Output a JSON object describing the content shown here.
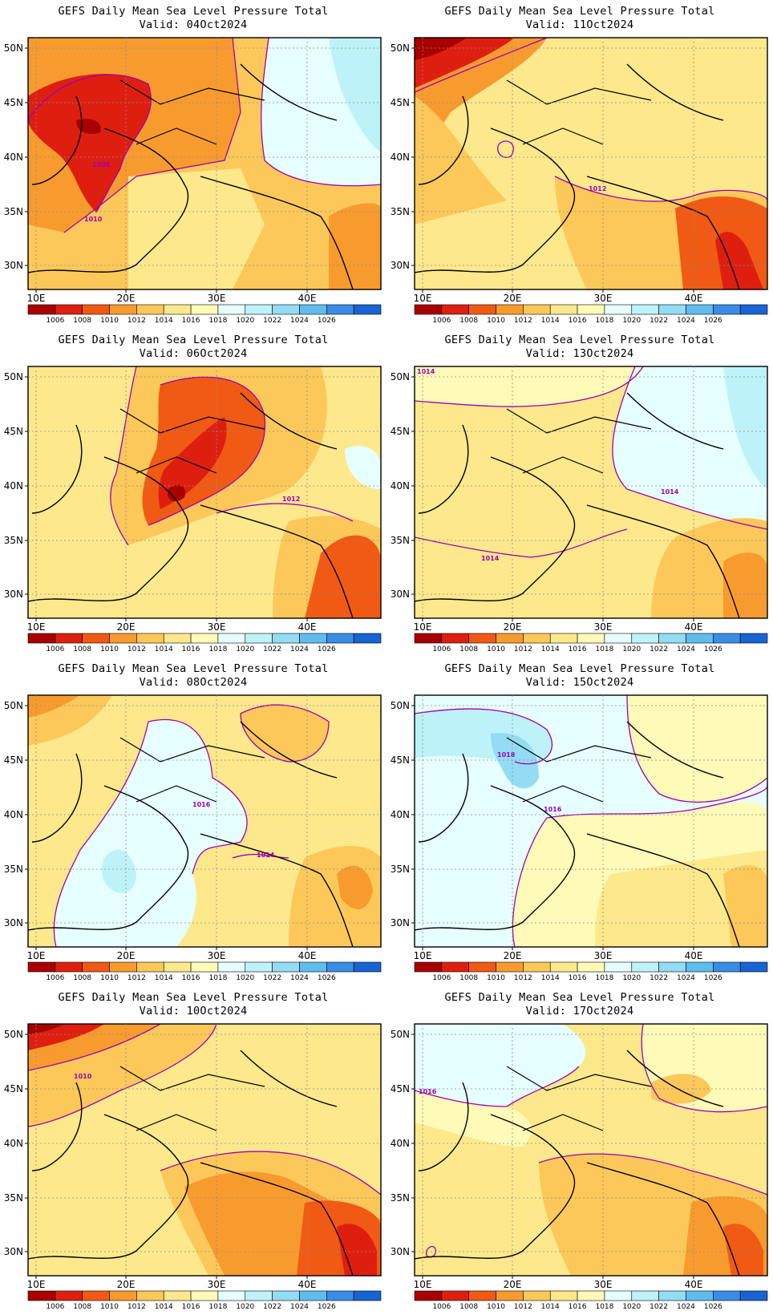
{
  "title": "GEFS Daily Mean Sea Level Pressure Total",
  "x_tick_labels": [
    "10E",
    "20E",
    "30E",
    "40E"
  ],
  "y_tick_labels": [
    "50N",
    "45N",
    "40N",
    "35N",
    "30N"
  ],
  "colorbar": {
    "labels": [
      "1006",
      "1008",
      "1010",
      "1012",
      "1014",
      "1016",
      "1018",
      "1020",
      "1022",
      "1024",
      "1026"
    ],
    "colors": [
      "#a80000",
      "#de1f10",
      "#f05a14",
      "#f89b2e",
      "#fcc85a",
      "#fde88c",
      "#fefab8",
      "#e6ffff",
      "#bdf3f8",
      "#93dcf3",
      "#5fbdee",
      "#3a8de4",
      "#1764d2"
    ]
  },
  "panels": [
    {
      "valid_label": "Valid: 04Oct2024",
      "base": "#fcc85a",
      "isobar_labels": [
        "1008",
        "1010"
      ]
    },
    {
      "valid_label": "Valid: 11Oct2024",
      "base": "#fde88c",
      "isobar_labels": [
        "1012"
      ]
    },
    {
      "valid_label": "Valid: 06Oct2024",
      "base": "#fde88c",
      "isobar_labels": [
        "1012"
      ]
    },
    {
      "valid_label": "Valid: 13Oct2024",
      "base": "#fde88c",
      "isobar_labels": [
        "1014",
        "1014",
        "1014"
      ]
    },
    {
      "valid_label": "Valid: 08Oct2024",
      "base": "#fde88c",
      "isobar_labels": [
        "1016",
        "1014"
      ]
    },
    {
      "valid_label": "Valid: 15Oct2024",
      "base": "#e6ffff",
      "isobar_labels": [
        "1018",
        "1016"
      ]
    },
    {
      "valid_label": "Valid: 10Oct2024",
      "base": "#fde88c",
      "isobar_labels": [
        "1010"
      ]
    },
    {
      "valid_label": "Valid: 17Oct2024",
      "base": "#fde88c",
      "isobar_labels": [
        "1016"
      ]
    }
  ]
}
